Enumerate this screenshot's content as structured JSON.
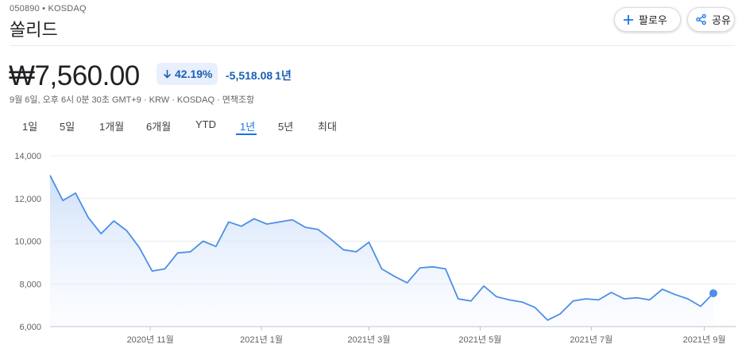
{
  "header": {
    "ticker": "050890 • KOSDAQ",
    "company": "쏠리드",
    "follow_label": "팔로우",
    "share_label": "공유"
  },
  "quote": {
    "price": "₩7,560.00",
    "percent_change": "42.19%",
    "abs_change": "-5,518.08",
    "period": "1년",
    "meta": "9월 6일, 오후 6시 0분 30초 GMT+9 · KRW · KOSDAQ · 면책조항"
  },
  "tabs": [
    "1일",
    "5일",
    "1개월",
    "6개월",
    "YTD",
    "1년",
    "5년",
    "최대"
  ],
  "active_tab": "1년",
  "colors": {
    "accent": "#1a73e8",
    "line": "#4d8fe6",
    "down": "#1a5fb4"
  },
  "chart_data": {
    "type": "area",
    "title": "",
    "xlabel": "",
    "ylabel": "",
    "ylim": [
      6000,
      14000
    ],
    "y_ticks": [
      "14,000",
      "12,000",
      "10,000",
      "8,000",
      "6,000"
    ],
    "x_ticks": [
      "2020년 11월",
      "2021년 1월",
      "2021년 3월",
      "2021년 5월",
      "2021년 7월",
      "2021년 9월"
    ],
    "x": [
      "2020-09-07",
      "2020-09-14",
      "2020-09-21",
      "2020-09-28",
      "2020-10-05",
      "2020-10-12",
      "2020-10-19",
      "2020-10-26",
      "2020-11-02",
      "2020-11-09",
      "2020-11-16",
      "2020-11-23",
      "2020-11-30",
      "2020-12-07",
      "2020-12-14",
      "2020-12-21",
      "2020-12-28",
      "2021-01-04",
      "2021-01-11",
      "2021-01-18",
      "2021-01-25",
      "2021-02-01",
      "2021-02-08",
      "2021-02-15",
      "2021-02-22",
      "2021-03-01",
      "2021-03-08",
      "2021-03-15",
      "2021-03-22",
      "2021-03-29",
      "2021-04-05",
      "2021-04-12",
      "2021-04-19",
      "2021-04-26",
      "2021-05-03",
      "2021-05-10",
      "2021-05-17",
      "2021-05-24",
      "2021-05-31",
      "2021-06-07",
      "2021-06-14",
      "2021-06-21",
      "2021-06-28",
      "2021-07-05",
      "2021-07-12",
      "2021-07-19",
      "2021-07-26",
      "2021-08-02",
      "2021-08-09",
      "2021-08-16",
      "2021-08-23",
      "2021-08-30",
      "2021-09-06"
    ],
    "series": [
      {
        "values": [
          13080,
          11900,
          12250,
          11100,
          10350,
          10950,
          10500,
          9700,
          8600,
          8700,
          9450,
          9500,
          10000,
          9750,
          10900,
          10700,
          11050,
          10800,
          10900,
          11000,
          10650,
          10550,
          10100,
          9600,
          9500,
          9950,
          8700,
          8350,
          8050,
          8750,
          8800,
          8700,
          7300,
          7200,
          7900,
          7400,
          7250,
          7150,
          6900,
          6300,
          6600,
          7200,
          7300,
          7250,
          7600,
          7300,
          7350,
          7250,
          7750,
          7500,
          7300,
          6950,
          7560
        ]
      }
    ]
  }
}
